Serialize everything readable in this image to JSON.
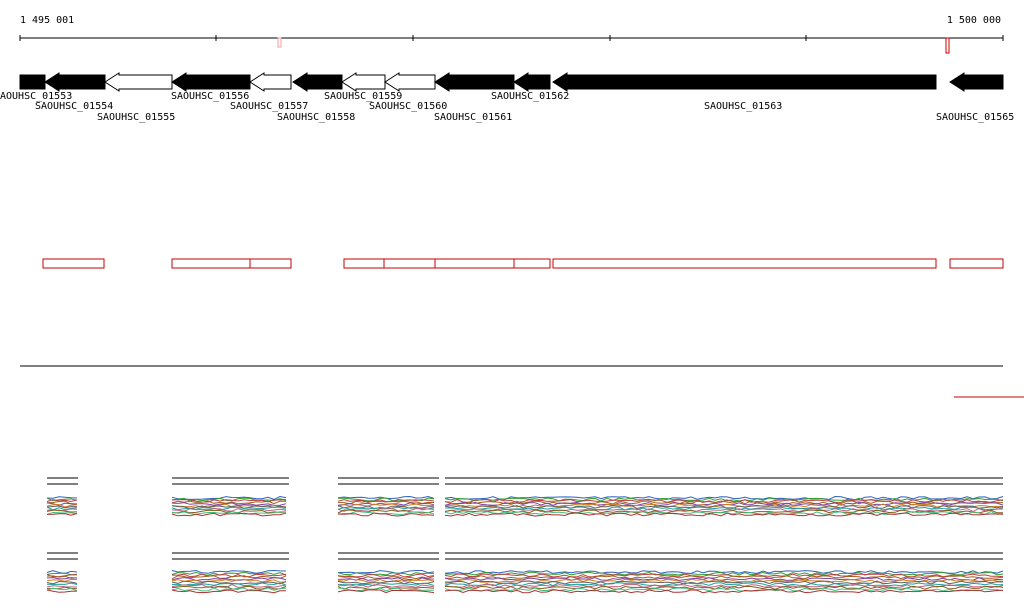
{
  "ruler": {
    "start_label": "1 495 001",
    "end_label": "1 500 000"
  },
  "genes": [
    {
      "label": "AOUHSC_01553"
    },
    {
      "label": "SAOUHSC_01554"
    },
    {
      "label": "SAOUHSC_01555"
    },
    {
      "label": "SAOUHSC_01556"
    },
    {
      "label": "SAOUHSC_01557"
    },
    {
      "label": "SAOUHSC_01558"
    },
    {
      "label": "SAOUHSC_01559"
    },
    {
      "label": "SAOUHSC_01560"
    },
    {
      "label": "SAOUHSC_01561"
    },
    {
      "label": "SAOUHSC_01562"
    },
    {
      "label": "SAOUHSC_01563"
    },
    {
      "label": "SAOUHSC_01565"
    }
  ]
}
